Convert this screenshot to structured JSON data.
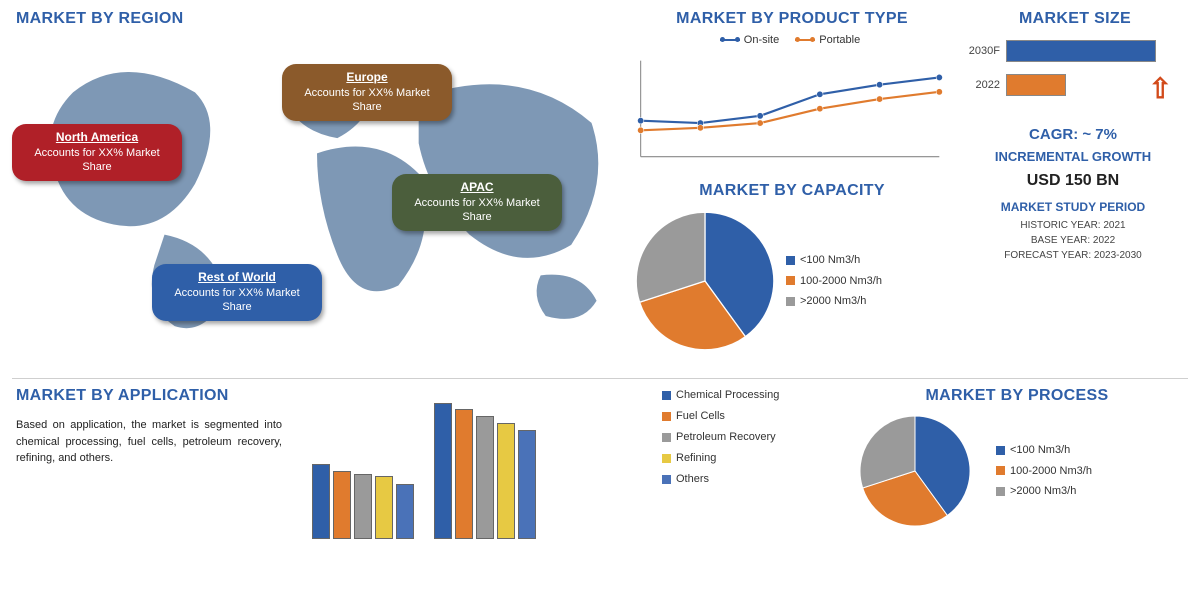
{
  "colors": {
    "heading": "#2f5fa8",
    "series_blue": "#2f5fa8",
    "series_orange": "#e07b2e",
    "series_grey": "#9a9a9a",
    "series_yellow": "#e7c943",
    "series_blue2": "#4a72b8",
    "pill_na": "#b02028",
    "pill_eu": "#8b5a2b",
    "pill_ap": "#4b5e3c",
    "pill_rw": "#2f5fa8",
    "map_fill": "#7e98b5",
    "bg": "#ffffff"
  },
  "section_titles": {
    "region": "MARKET BY REGION",
    "product": "MARKET BY PRODUCT TYPE",
    "size": "MARKET SIZE",
    "capacity": "MARKET BY CAPACITY",
    "application": "MARKET BY APPLICATION",
    "process": "MARKET BY PROCESS"
  },
  "regions": [
    {
      "name": "North America",
      "sub": "Accounts for XX% Market Share",
      "pill_class": "pill-na"
    },
    {
      "name": "Europe",
      "sub": "Accounts for XX% Market Share",
      "pill_class": "pill-eu"
    },
    {
      "name": "APAC",
      "sub": "Accounts for XX% Market Share",
      "pill_class": "pill-ap"
    },
    {
      "name": "Rest of World",
      "sub": "Accounts for XX% Market Share",
      "pill_class": "pill-rw"
    }
  ],
  "product_chart": {
    "type": "line",
    "series": [
      {
        "name": "On-site",
        "color": "#2f5fa8",
        "points": [
          30,
          28,
          34,
          52,
          60,
          66
        ]
      },
      {
        "name": "Portable",
        "color": "#e07b2e",
        "points": [
          22,
          24,
          28,
          40,
          48,
          54
        ]
      }
    ],
    "x_count": 6,
    "ylim": [
      0,
      80
    ]
  },
  "capacity_pie": {
    "type": "pie",
    "slices": [
      {
        "label": "<100 Nm3/h",
        "value": 40,
        "color": "#2f5fa8"
      },
      {
        "label": "100-2000 Nm3/h",
        "value": 30,
        "color": "#e07b2e"
      },
      {
        "label": ">2000 Nm3/h",
        "value": 30,
        "color": "#9a9a9a"
      }
    ]
  },
  "market_size": {
    "bars": [
      {
        "label": "2030F",
        "width": 150,
        "color": "#2f5fa8"
      },
      {
        "label": "2022",
        "width": 60,
        "color": "#e07b2e"
      }
    ],
    "cagr": "CAGR:  ~ 7%",
    "incremental": "INCREMENTAL GROWTH",
    "usd": "USD 150 BN",
    "study_title": "MARKET STUDY PERIOD",
    "study_lines": [
      "HISTORIC YEAR: 2021",
      "BASE YEAR: 2022",
      "FORECAST YEAR: 2023-2030"
    ]
  },
  "application": {
    "text": "Based on application, the market is segmented into chemical processing, fuel cells, petroleum recovery, refining, and others.",
    "legend": [
      {
        "label": "Chemical Processing",
        "color": "#2f5fa8"
      },
      {
        "label": "Fuel Cells",
        "color": "#e07b2e"
      },
      {
        "label": "Petroleum Recovery",
        "color": "#9a9a9a"
      },
      {
        "label": "Refining",
        "color": "#e7c943"
      },
      {
        "label": "Others",
        "color": "#4a72b8"
      }
    ],
    "groups": [
      {
        "values": [
          55,
          50,
          48,
          46,
          40
        ]
      },
      {
        "values": [
          100,
          95,
          90,
          85,
          80
        ]
      }
    ],
    "ymax": 110
  },
  "process_pie": {
    "type": "pie",
    "slices": [
      {
        "label": "<100 Nm3/h",
        "value": 40,
        "color": "#2f5fa8"
      },
      {
        "label": "100-2000 Nm3/h",
        "value": 30,
        "color": "#e07b2e"
      },
      {
        "label": ">2000 Nm3/h",
        "value": 30,
        "color": "#9a9a9a"
      }
    ]
  }
}
